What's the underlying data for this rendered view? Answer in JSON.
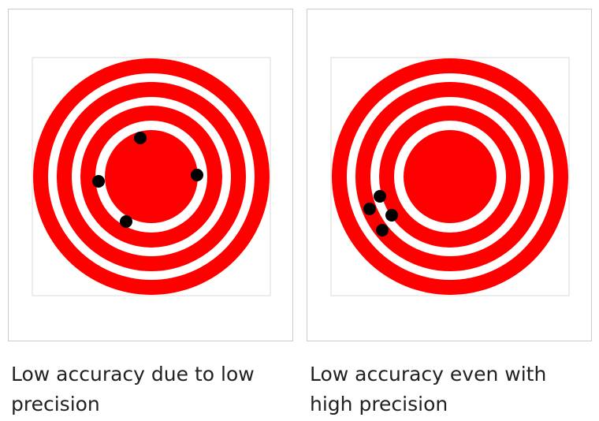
{
  "figures": [
    {
      "caption": "Low accuracy due to low precision",
      "colors": {
        "ring": "#ff0000",
        "gap": "#ffffff",
        "shot": "#000000",
        "frame": "#e6e6e6"
      }
    },
    {
      "caption": "Low accuracy even with high precision",
      "colors": {
        "ring": "#ff0000",
        "gap": "#ffffff",
        "shot": "#000000",
        "frame": "#e6e6e6"
      }
    }
  ]
}
